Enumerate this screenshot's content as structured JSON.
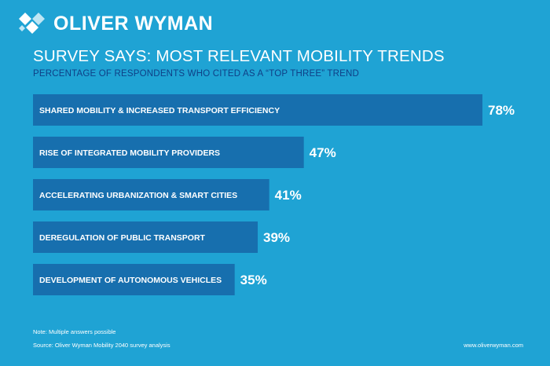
{
  "brand": {
    "name": "OLIVER WYMAN"
  },
  "colors": {
    "background": "#1fa3d4",
    "bar": "#176fae",
    "subtitle": "#0f3f86",
    "text": "#ffffff"
  },
  "chart_data": {
    "type": "bar",
    "orientation": "horizontal",
    "title": "SURVEY SAYS: MOST RELEVANT MOBILITY TRENDS",
    "subtitle": "PERCENTAGE OF RESPONDENTS WHO CITED AS A “TOP THREE” TREND",
    "categories": [
      "SHARED MOBILITY & INCREASED TRANSPORT EFFICIENCY",
      "RISE OF INTEGRATED MOBILITY PROVIDERS",
      "ACCELERATING URBANIZATION & SMART CITIES",
      "DEREGULATION OF PUBLIC TRANSPORT",
      "DEVELOPMENT OF AUTONOMOUS VEHICLES"
    ],
    "values": [
      78,
      47,
      41,
      39,
      35
    ],
    "value_labels": [
      "78%",
      "47%",
      "41%",
      "39%",
      "35%"
    ],
    "unit": "%",
    "xlim": [
      0,
      100
    ],
    "grid": false,
    "legend": "none"
  },
  "footer": {
    "note": "Note: Multiple answers possible",
    "source": "Source: Oliver Wyman Mobility 2040 survey analysis",
    "url": "www.oliverwyman.com"
  }
}
